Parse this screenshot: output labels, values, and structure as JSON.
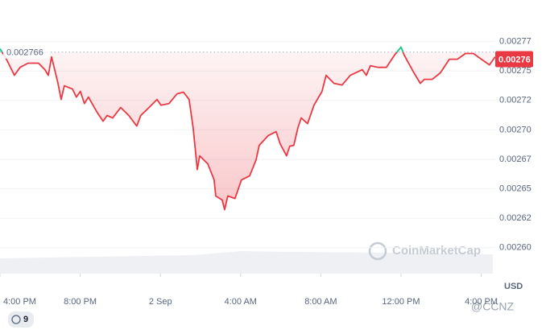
{
  "chart_data": {
    "type": "line",
    "x": [
      0,
      0.32,
      0.72,
      1.0,
      1.4,
      1.92,
      2.24,
      2.41,
      2.57,
      2.89,
      3.05,
      3.21,
      3.61,
      3.81,
      4.01,
      4.21,
      4.41,
      4.82,
      5.14,
      5.34,
      5.62,
      6.02,
      6.42,
      6.82,
      7.02,
      7.43,
      7.83,
      8.03,
      8.43,
      8.83,
      9.15,
      9.43,
      9.63,
      9.84,
      9.96,
      10.36,
      10.68,
      10.76,
      11.08,
      11.2,
      11.36,
      11.72,
      12.04,
      12.45,
      12.77,
      12.93,
      13.37,
      13.77,
      13.97,
      14.29,
      14.45,
      14.65,
      14.86,
      15.02,
      15.34,
      15.66,
      16.06,
      16.26,
      16.66,
      17.06,
      17.47,
      18.07,
      18.27,
      18.47,
      18.87,
      19.27,
      19.67,
      20.0,
      20.16,
      20.6,
      20.96,
      21.16,
      21.56,
      21.96,
      22.41,
      22.81,
      23.21,
      23.61,
      24.01,
      24.41,
      24.69
    ],
    "values": [
      0.0027689,
      0.00276,
      0.0027463,
      0.0027531,
      0.0027566,
      0.0027566,
      0.0027511,
      0.0027463,
      0.002762,
      0.0027395,
      0.0027258,
      0.0027374,
      0.0027347,
      0.0027279,
      0.0027327,
      0.0027224,
      0.0027279,
      0.0027156,
      0.0027074,
      0.0027122,
      0.0027101,
      0.002719,
      0.0027122,
      0.0027033,
      0.0027122,
      0.002719,
      0.0027258,
      0.002721,
      0.0027224,
      0.0027306,
      0.002732,
      0.0027258,
      0.0027019,
      0.0026664,
      0.002678,
      0.0026712,
      0.0026575,
      0.0026439,
      0.0026405,
      0.0026323,
      0.0026439,
      0.0026418,
      0.0026575,
      0.0026609,
      0.0026746,
      0.0026869,
      0.0026951,
      0.0026985,
      0.0026883,
      0.002678,
      0.0026862,
      0.0026869,
      0.0027019,
      0.0027101,
      0.0027053,
      0.002721,
      0.0027327,
      0.0027463,
      0.0027395,
      0.0027381,
      0.0027463,
      0.0027511,
      0.0027463,
      0.0027545,
      0.0027531,
      0.0027531,
      0.0027634,
      0.0027702,
      0.0027634,
      0.0027497,
      0.0027395,
      0.0027429,
      0.0027429,
      0.0027484,
      0.00276,
      0.00276,
      0.0027648,
      0.0027648,
      0.00276,
      0.0027552,
      0.002762
    ],
    "color": "#ea3943",
    "up_color": "#16c784",
    "xlim": [
      0,
      24.7
    ],
    "ylim": [
      0.002578,
      0.0028
    ],
    "xticks": [
      {
        "value": 0,
        "label": "4:00 PM"
      },
      {
        "value": 4,
        "label": "8:00 PM"
      },
      {
        "value": 8,
        "label": "2 Sep"
      },
      {
        "value": 12,
        "label": "4:00 AM"
      },
      {
        "value": 16,
        "label": "8:00 AM"
      },
      {
        "value": 20,
        "label": "12:00 PM"
      },
      {
        "value": 24,
        "label": "4:00 PM"
      }
    ],
    "yticks": [
      {
        "value": 0.0026,
        "label": "0.00260"
      },
      {
        "value": 0.002625,
        "label": "0.00262"
      },
      {
        "value": 0.00265,
        "label": "0.00265"
      },
      {
        "value": 0.002675,
        "label": "0.00267"
      },
      {
        "value": 0.0027,
        "label": "0.00270"
      },
      {
        "value": 0.002725,
        "label": "0.00272"
      },
      {
        "value": 0.00275,
        "label": "0.00275"
      },
      {
        "value": 0.002775,
        "label": "0.00277"
      }
    ],
    "grid": true,
    "y_unit": "USD",
    "reference_value": 0.002766,
    "last_price": 0.00276,
    "watermark": "CoinMarketCap"
  },
  "footer": {
    "badge": "9",
    "corner_watermark": "@CCNZ"
  }
}
